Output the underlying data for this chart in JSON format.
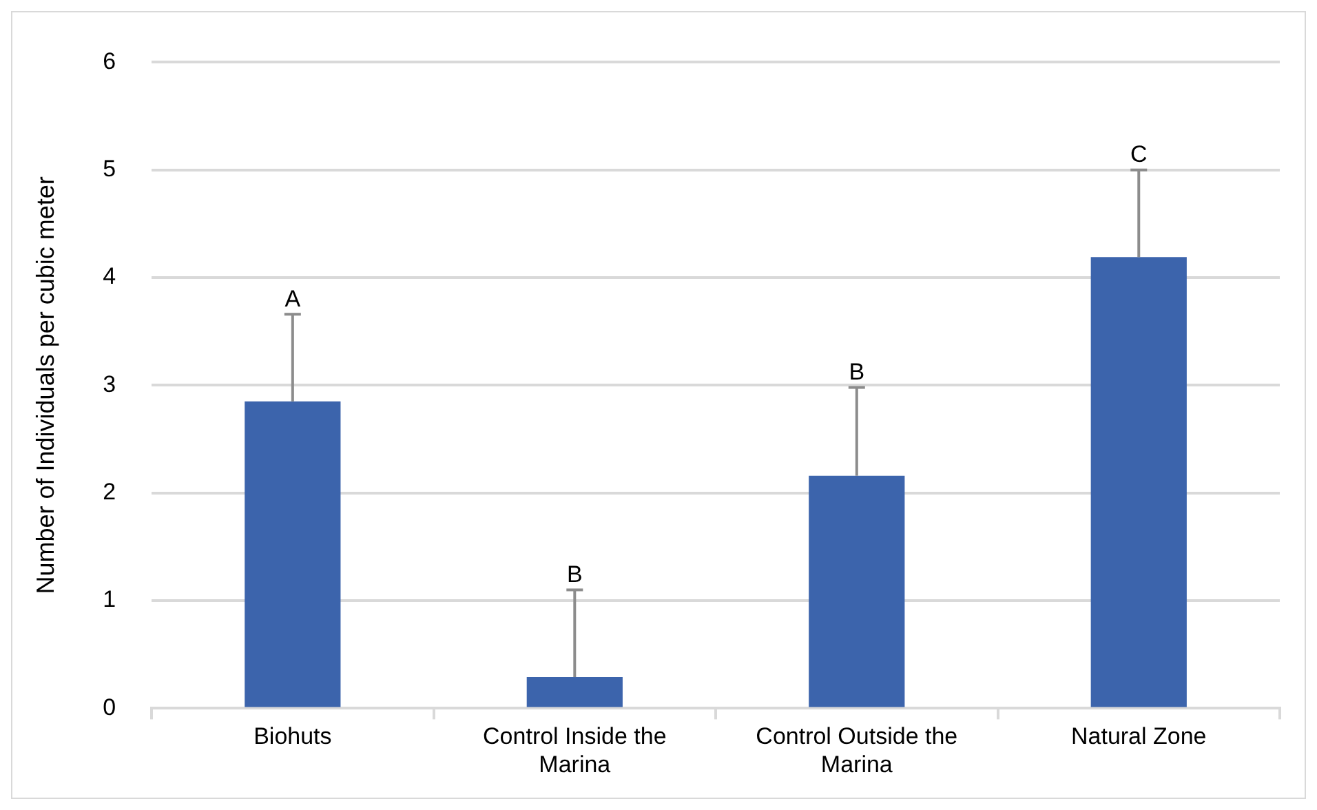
{
  "chart_data": {
    "type": "bar",
    "ylabel": "Number of Individuals per cubic meter",
    "categories": [
      "Biohuts",
      "Control Inside the Marina",
      "Control Outside the Marina",
      "Natural Zone"
    ],
    "values": [
      2.85,
      0.29,
      2.16,
      4.19
    ],
    "errors": [
      [
        2.85,
        3.66
      ],
      [
        0.29,
        1.1
      ],
      [
        2.16,
        2.98
      ],
      [
        4.19,
        5.0
      ]
    ],
    "color": "#3c64ac",
    "ylim": [
      0,
      6
    ],
    "yticks": [
      0,
      1,
      2,
      3,
      4,
      5,
      6
    ],
    "grid": "y",
    "legend": false,
    "annotations": [
      {
        "text": "A",
        "x": "Biohuts",
        "y": 3.66
      },
      {
        "text": "B",
        "x": "Control Inside the Marina",
        "y": 1.1
      },
      {
        "text": "B",
        "x": "Control Outside the Marina",
        "y": 2.98
      },
      {
        "text": "C",
        "x": "Natural Zone",
        "y": 5.0
      }
    ]
  }
}
